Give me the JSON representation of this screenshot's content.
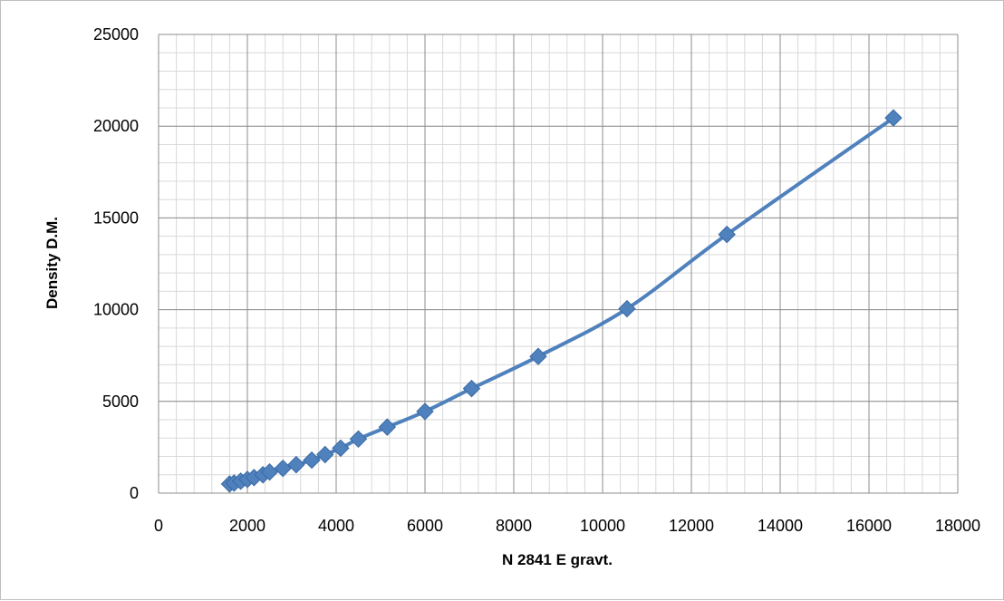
{
  "chart_data": {
    "type": "scatter",
    "title": "",
    "xlabel": "N 2841 E gravt.",
    "ylabel": "Density D.M.",
    "xlim": [
      0,
      18000
    ],
    "ylim": [
      0,
      25000
    ],
    "x_major_step": 2000,
    "y_major_step": 5000,
    "x_minor_step": 400,
    "y_minor_step": 1000,
    "grid": true,
    "legend": "none",
    "line_color": "#4f81bd",
    "marker": "diamond",
    "smooth": true,
    "x_ticks": [
      "0",
      "2000",
      "4000",
      "6000",
      "8000",
      "10000",
      "12000",
      "14000",
      "16000",
      "18000"
    ],
    "y_ticks": [
      "0",
      "5000",
      "10000",
      "15000",
      "20000",
      "25000"
    ],
    "series": [
      {
        "x": [
          1600,
          1700,
          1850,
          2000,
          2150,
          2350,
          2500,
          2800,
          3100,
          3450,
          3750,
          4100,
          4500,
          5150,
          6000,
          7050,
          8550,
          10550,
          12800,
          16550
        ],
        "y": [
          500,
          550,
          650,
          750,
          850,
          1000,
          1150,
          1350,
          1550,
          1800,
          2100,
          2450,
          2950,
          3600,
          4450,
          5700,
          7450,
          10050,
          14100,
          20450
        ]
      }
    ]
  }
}
